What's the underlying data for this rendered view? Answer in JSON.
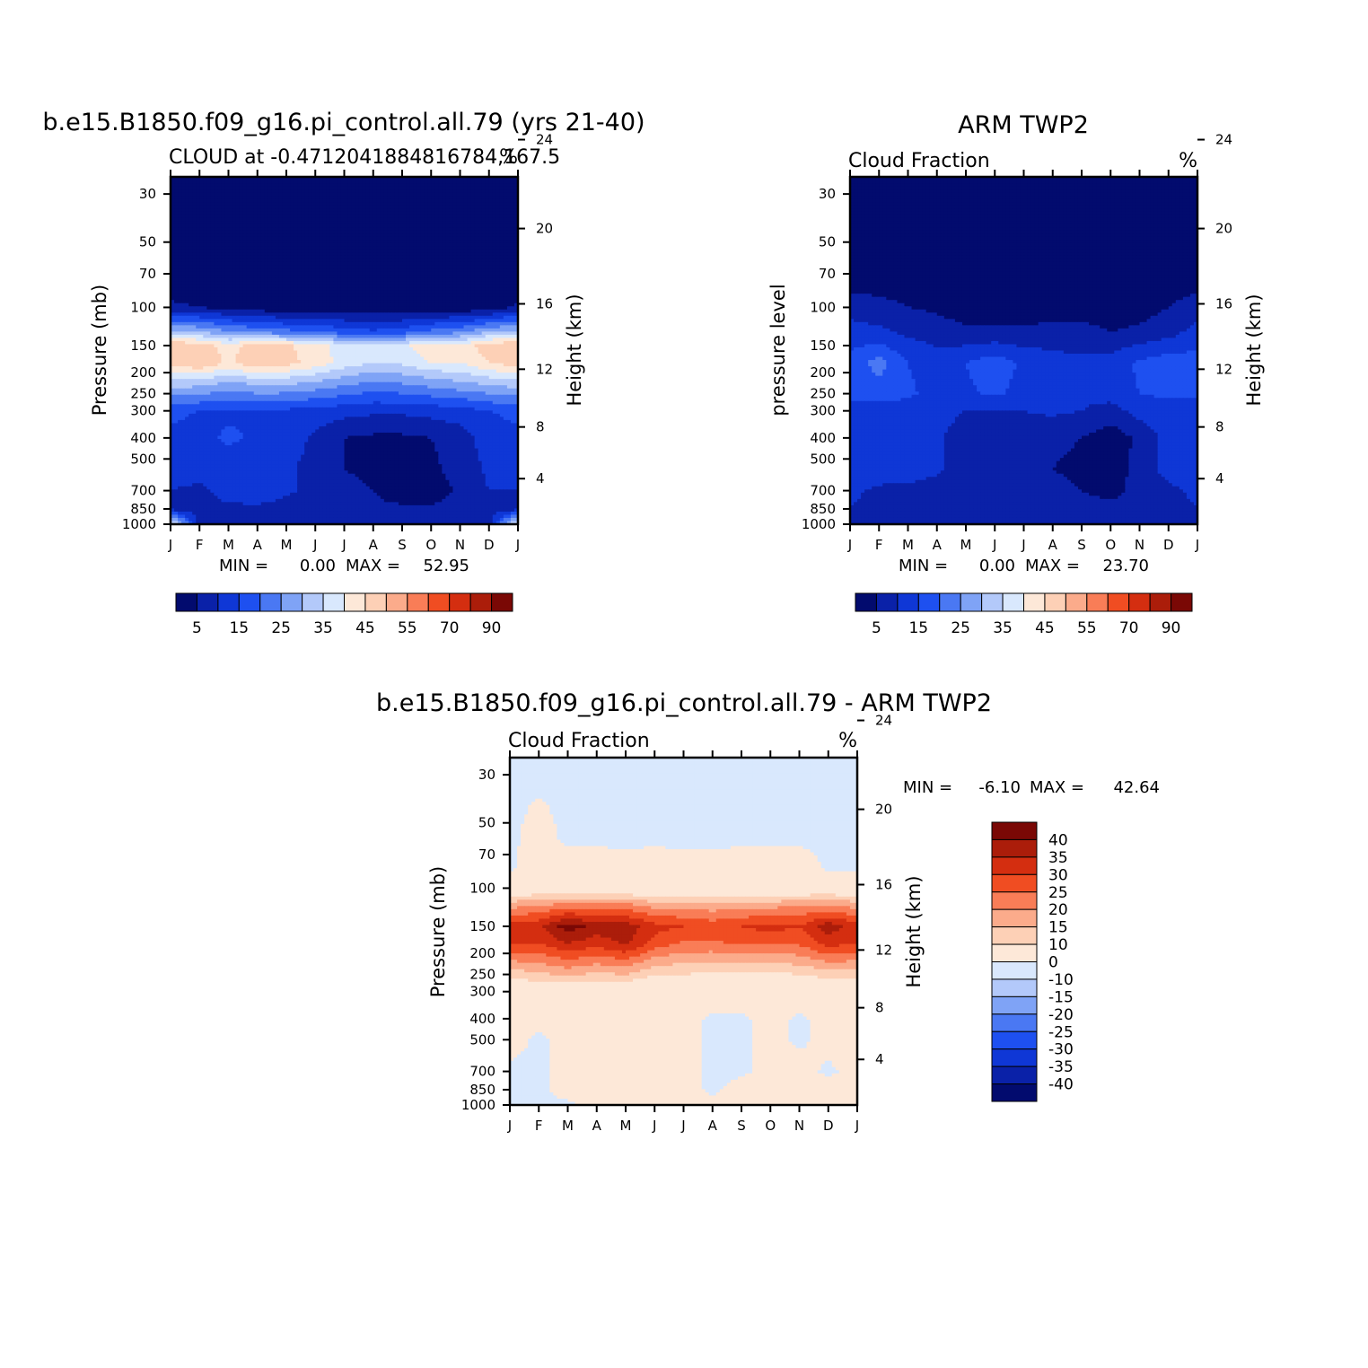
{
  "colors": {
    "frame": "#000000",
    "ctrl_scale": [
      "#020b6e",
      "#0a21a8",
      "#0f37d6",
      "#1e50f0",
      "#4a78f3",
      "#7fa3f6",
      "#b3c9fa",
      "#d9e8fd",
      "#fde8d8",
      "#fdd0b6",
      "#fbab8b",
      "#f97d57",
      "#f04d22",
      "#d42e10",
      "#ab1d0a",
      "#7a0805"
    ],
    "diff_scale": [
      "#020b6e",
      "#0a21a8",
      "#0f37d6",
      "#1e50f0",
      "#4a78f3",
      "#7fa3f6",
      "#b3c9fa",
      "#d9e8fd",
      "#fde8d8",
      "#fdd0b6",
      "#fbab8b",
      "#f97d57",
      "#f04d22",
      "#d42e10",
      "#ab1d0a",
      "#7a0805"
    ]
  },
  "chart_data": [
    {
      "type": "heatmap",
      "title": "b.e15.B1850.f09_g16.pi_control.all.79 (yrs 21-40)",
      "subtitle_left": "CLOUD at -0.4712041884816784,167.5",
      "subtitle_right": "%",
      "xlabel": "",
      "ylabel": "Pressure (mb)",
      "ylabel_right": "Height (km)",
      "x_ticks": [
        "J",
        "F",
        "M",
        "A",
        "M",
        "J",
        "J",
        "A",
        "S",
        "O",
        "N",
        "D",
        "J"
      ],
      "y_ticks": [
        "30",
        "50",
        "70",
        "100",
        "150",
        "200",
        "250",
        "300",
        "400",
        "500",
        "700",
        "850",
        "1000"
      ],
      "y_ticks_right": [
        "24",
        "20",
        "16",
        "12",
        "8",
        "4"
      ],
      "min_label": "MIN =",
      "min_value": "0.00",
      "max_label": "MAX =",
      "max_value": "52.95",
      "colorbar_labels": [
        "5",
        "15",
        "25",
        "35",
        "45",
        "55",
        "70",
        "90"
      ],
      "levels": [
        {
          "p": 30,
          "v": [
            1,
            1,
            1,
            1,
            1,
            1,
            1,
            1,
            1,
            1,
            1,
            1,
            1
          ]
        },
        {
          "p": 70,
          "v": [
            1,
            1,
            1,
            1,
            1,
            1,
            1,
            1,
            1,
            1,
            1,
            1,
            1
          ]
        },
        {
          "p": 100,
          "v": [
            6,
            5,
            3,
            2,
            1,
            1,
            1,
            1,
            1,
            1,
            1,
            2,
            6
          ]
        },
        {
          "p": 130,
          "v": [
            32,
            30,
            26,
            24,
            22,
            20,
            18,
            16,
            18,
            22,
            24,
            30,
            32
          ]
        },
        {
          "p": 150,
          "v": [
            50,
            48,
            42,
            48,
            46,
            42,
            38,
            36,
            38,
            45,
            42,
            48,
            50
          ]
        },
        {
          "p": 180,
          "v": [
            48,
            50,
            44,
            50,
            47,
            43,
            38,
            35,
            36,
            40,
            40,
            45,
            48
          ]
        },
        {
          "p": 220,
          "v": [
            34,
            33,
            30,
            32,
            32,
            30,
            27,
            25,
            26,
            28,
            30,
            32,
            34
          ]
        },
        {
          "p": 300,
          "v": [
            16,
            15,
            14,
            15,
            14,
            13,
            12,
            11,
            11,
            12,
            13,
            15,
            16
          ]
        },
        {
          "p": 400,
          "v": [
            14,
            13,
            16,
            14,
            13,
            9,
            5,
            4,
            4,
            5,
            7,
            13,
            14
          ]
        },
        {
          "p": 550,
          "v": [
            12,
            12,
            12,
            12,
            11,
            8,
            5,
            4,
            3,
            4,
            7,
            11,
            12
          ]
        },
        {
          "p": 700,
          "v": [
            10,
            9,
            12,
            13,
            11,
            8,
            6,
            5,
            2,
            2,
            6,
            10,
            10
          ]
        },
        {
          "p": 850,
          "v": [
            8,
            8,
            9,
            9,
            8,
            7,
            6,
            6,
            6,
            6,
            7,
            8,
            8
          ]
        },
        {
          "p": 1000,
          "v": [
            40,
            8,
            8,
            8,
            8,
            8,
            8,
            8,
            8,
            8,
            8,
            8,
            40
          ]
        }
      ]
    },
    {
      "type": "heatmap",
      "title": "ARM TWP2",
      "subtitle_left": "Cloud Fraction",
      "subtitle_right": "%",
      "xlabel": "",
      "ylabel": "pressure level",
      "ylabel_right": "Height (km)",
      "x_ticks": [
        "J",
        "F",
        "M",
        "A",
        "M",
        "J",
        "J",
        "A",
        "S",
        "O",
        "N",
        "D",
        "J"
      ],
      "y_ticks": [
        "30",
        "50",
        "70",
        "100",
        "150",
        "200",
        "250",
        "300",
        "400",
        "500",
        "700",
        "850",
        "1000"
      ],
      "y_ticks_right": [
        "24",
        "20",
        "16",
        "12",
        "8",
        "4"
      ],
      "min_label": "MIN =",
      "min_value": "0.00",
      "max_label": "MAX =",
      "max_value": "23.70",
      "colorbar_labels": [
        "5",
        "15",
        "25",
        "35",
        "45",
        "55",
        "70",
        "90"
      ],
      "levels": [
        {
          "p": 30,
          "v": [
            1,
            1,
            1,
            1,
            1,
            1,
            1,
            1,
            1,
            1,
            1,
            1,
            1
          ]
        },
        {
          "p": 70,
          "v": [
            1,
            1,
            1,
            1,
            1,
            1,
            1,
            1,
            1,
            1,
            1,
            1,
            1
          ]
        },
        {
          "p": 100,
          "v": [
            8,
            7,
            5,
            4,
            2,
            3,
            2,
            2,
            2,
            2,
            3,
            5,
            8
          ]
        },
        {
          "p": 130,
          "v": [
            12,
            11,
            9,
            8,
            6,
            6,
            6,
            7,
            7,
            5,
            6,
            8,
            12
          ]
        },
        {
          "p": 180,
          "v": [
            17,
            22,
            15,
            12,
            15,
            18,
            14,
            12,
            11,
            12,
            16,
            18,
            17
          ]
        },
        {
          "p": 250,
          "v": [
            16,
            18,
            16,
            13,
            14,
            16,
            13,
            12,
            11,
            12,
            15,
            16,
            16
          ]
        },
        {
          "p": 300,
          "v": [
            13,
            12,
            12,
            12,
            10,
            10,
            10,
            11,
            10,
            8,
            12,
            13,
            13
          ]
        },
        {
          "p": 400,
          "v": [
            14,
            15,
            13,
            11,
            7,
            6,
            7,
            6,
            5,
            2,
            6,
            12,
            14
          ]
        },
        {
          "p": 550,
          "v": [
            13,
            13,
            12,
            11,
            7,
            6,
            7,
            5,
            4,
            2,
            7,
            12,
            13
          ]
        },
        {
          "p": 700,
          "v": [
            11,
            9,
            9,
            8,
            5,
            6,
            6,
            6,
            5,
            3,
            7,
            9,
            11
          ]
        },
        {
          "p": 850,
          "v": [
            10,
            8,
            8,
            8,
            7,
            7,
            7,
            7,
            7,
            7,
            7,
            8,
            10
          ]
        },
        {
          "p": 1000,
          "v": [
            6,
            6,
            6,
            6,
            6,
            6,
            6,
            6,
            6,
            6,
            6,
            6,
            6
          ]
        }
      ]
    },
    {
      "type": "heatmap",
      "title": "b.e15.B1850.f09_g16.pi_control.all.79 - ARM TWP2",
      "subtitle_left": "Cloud Fraction",
      "subtitle_right": "%",
      "xlabel": "",
      "ylabel": "Pressure (mb)",
      "ylabel_right": "Height (km)",
      "x_ticks": [
        "J",
        "F",
        "M",
        "A",
        "M",
        "J",
        "J",
        "A",
        "S",
        "O",
        "N",
        "D",
        "J"
      ],
      "y_ticks": [
        "30",
        "50",
        "70",
        "100",
        "150",
        "200",
        "250",
        "300",
        "400",
        "500",
        "700",
        "850",
        "1000"
      ],
      "y_ticks_right": [
        "24",
        "20",
        "16",
        "12",
        "8",
        "4"
      ],
      "min_label": "MIN =",
      "min_value": "-6.10",
      "max_label": "MAX =",
      "max_value": "42.64",
      "colorbar_labels": [
        "40",
        "35",
        "30",
        "25",
        "20",
        "15",
        "10",
        "0",
        "-10",
        "-15",
        "-20",
        "-25",
        "-30",
        "-35",
        "-40"
      ],
      "levels": [
        {
          "p": 30,
          "v": [
            -1,
            -1,
            -1,
            -1,
            -1,
            -1,
            -1,
            -1,
            -1,
            -1,
            -1,
            -1,
            -1
          ]
        },
        {
          "p": 60,
          "v": [
            -1,
            2,
            -1,
            -1,
            -1,
            -1,
            -1,
            -1,
            -1,
            -1,
            -1,
            -1,
            -1
          ]
        },
        {
          "p": 80,
          "v": [
            -1,
            3,
            3,
            3,
            2,
            3,
            2,
            2,
            3,
            3,
            3,
            -1,
            -1
          ]
        },
        {
          "p": 100,
          "v": [
            3,
            4,
            3,
            3,
            3,
            2,
            2,
            2,
            3,
            3,
            3,
            4,
            3
          ]
        },
        {
          "p": 120,
          "v": [
            18,
            20,
            22,
            22,
            22,
            18,
            18,
            17,
            18,
            18,
            20,
            20,
            18
          ]
        },
        {
          "p": 150,
          "v": [
            32,
            34,
            43,
            38,
            38,
            32,
            30,
            28,
            30,
            32,
            30,
            38,
            32
          ]
        },
        {
          "p": 180,
          "v": [
            30,
            30,
            35,
            32,
            36,
            28,
            24,
            24,
            26,
            26,
            26,
            32,
            30
          ]
        },
        {
          "p": 250,
          "v": [
            12,
            14,
            16,
            14,
            15,
            10,
            10,
            9,
            9,
            9,
            10,
            12,
            12
          ]
        },
        {
          "p": 300,
          "v": [
            3,
            4,
            4,
            4,
            3,
            3,
            3,
            3,
            3,
            3,
            3,
            3,
            3
          ]
        },
        {
          "p": 400,
          "v": [
            2,
            2,
            3,
            2,
            5,
            3,
            2,
            -1,
            -1,
            2,
            -1,
            2,
            2
          ]
        },
        {
          "p": 500,
          "v": [
            2,
            -1,
            2,
            2,
            4,
            2,
            2,
            -1,
            -1,
            2,
            -1,
            2,
            2
          ]
        },
        {
          "p": 700,
          "v": [
            -1,
            -1,
            2,
            2,
            2,
            2,
            2,
            -1,
            -1,
            2,
            2,
            -1,
            2
          ]
        },
        {
          "p": 850,
          "v": [
            -1,
            -1,
            2,
            2,
            2,
            2,
            2,
            -1,
            2,
            2,
            2,
            2,
            2
          ]
        },
        {
          "p": 1000,
          "v": [
            -1,
            -1,
            -1,
            2,
            2,
            2,
            2,
            2,
            2,
            2,
            2,
            2,
            2
          ]
        }
      ]
    }
  ]
}
